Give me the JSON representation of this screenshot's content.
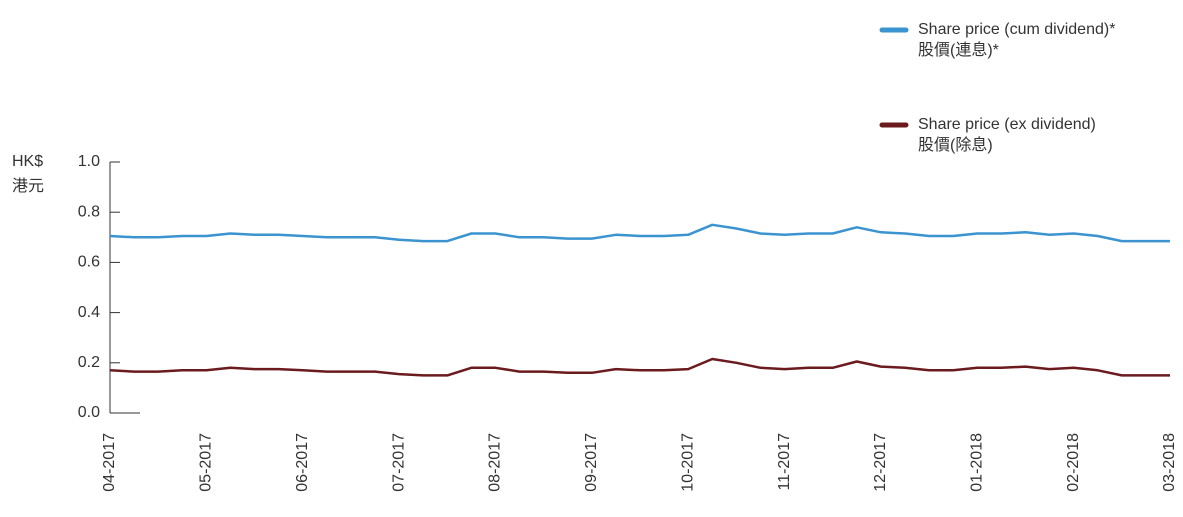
{
  "chart_data": {
    "type": "line",
    "ylabel": "HK$",
    "ylabel_zh": "港元",
    "categories": [
      "04-2017",
      null,
      null,
      null,
      "05-2017",
      null,
      null,
      null,
      "06-2017",
      null,
      null,
      null,
      "07-2017",
      null,
      null,
      null,
      "08-2017",
      null,
      null,
      null,
      "09-2017",
      null,
      null,
      null,
      "10-2017",
      null,
      null,
      null,
      "11-2017",
      null,
      null,
      null,
      "12-2017",
      null,
      null,
      null,
      "01-2018",
      null,
      null,
      null,
      "02-2018",
      null,
      null,
      null,
      "03-2018"
    ],
    "series": [
      {
        "name": "Share price (cum dividend)*",
        "name_zh": "股價(連息)*",
        "color": "#3b93cf",
        "values": [
          0.705,
          0.7,
          0.7,
          0.705,
          0.705,
          0.715,
          0.71,
          0.71,
          0.705,
          0.7,
          0.7,
          0.7,
          0.69,
          0.685,
          0.685,
          0.715,
          0.715,
          0.7,
          0.7,
          0.695,
          0.695,
          0.71,
          0.705,
          0.705,
          0.71,
          0.75,
          0.735,
          0.715,
          0.71,
          0.715,
          0.715,
          0.74,
          0.72,
          0.715,
          0.705,
          0.705,
          0.715,
          0.715,
          0.72,
          0.71,
          0.715,
          0.705,
          0.685,
          0.685,
          0.685
        ]
      },
      {
        "name": "Share price (ex dividend)",
        "name_zh": "股價(除息)",
        "color": "#6b1a1d",
        "values": [
          0.17,
          0.165,
          0.165,
          0.17,
          0.17,
          0.18,
          0.175,
          0.175,
          0.17,
          0.165,
          0.165,
          0.165,
          0.155,
          0.15,
          0.15,
          0.18,
          0.18,
          0.165,
          0.165,
          0.16,
          0.16,
          0.175,
          0.17,
          0.17,
          0.175,
          0.215,
          0.2,
          0.18,
          0.175,
          0.18,
          0.18,
          0.205,
          0.185,
          0.18,
          0.17,
          0.17,
          0.18,
          0.18,
          0.185,
          0.175,
          0.18,
          0.17,
          0.15,
          0.15,
          0.15
        ]
      }
    ],
    "ylim": [
      0,
      1
    ],
    "yticks": [
      {
        "value": 0,
        "label": "0.0"
      },
      0.2,
      0.4,
      0.6,
      0.8,
      {
        "value": 1,
        "label": "1.0"
      }
    ]
  }
}
